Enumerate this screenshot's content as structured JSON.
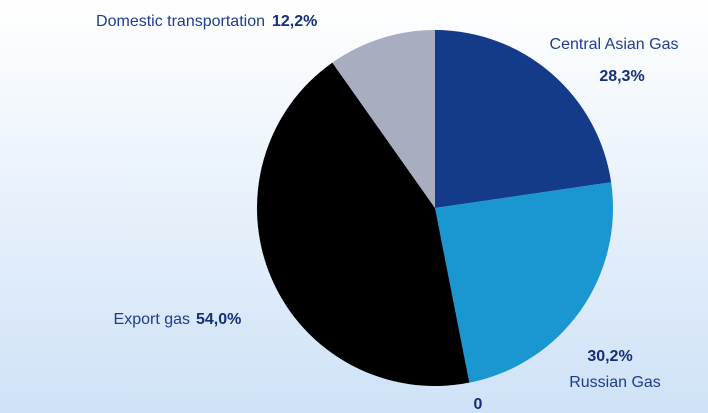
{
  "chart_data": {
    "type": "pie",
    "categories": [
      "Central Asian Gas",
      "Russian Gas",
      "Export gas",
      "Domestic transportation",
      null
    ],
    "values": [
      28.3,
      30.2,
      54.0,
      12.2,
      0
    ],
    "value_labels": [
      "28,3%",
      "30,2%",
      "54,0%",
      "12,2%",
      "0"
    ],
    "colors": [
      "#143a8a",
      "#1a96d0",
      "#000000",
      "#a9adc0",
      "#ffffff"
    ]
  }
}
